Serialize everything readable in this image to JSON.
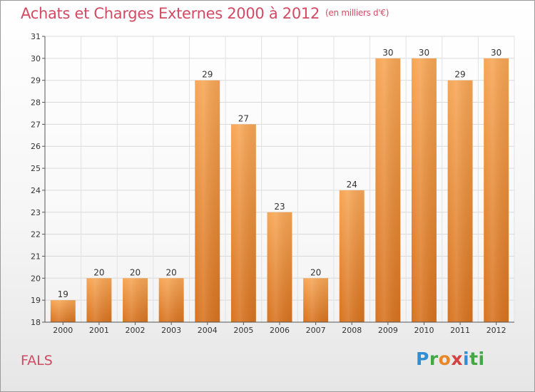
{
  "header": {
    "title": "Achats et Charges Externes 2000 à 2012",
    "unit": "(en milliers d'€)"
  },
  "footer": {
    "commune": "FALS",
    "logo_letters": [
      "P",
      "r",
      "o",
      "x",
      "i",
      "ti"
    ]
  },
  "colors": {
    "title": "#d24a63",
    "bar_top": "#f7a655",
    "bar_bottom": "#d8731f"
  },
  "chart_data": {
    "type": "bar",
    "categories": [
      "2000",
      "2001",
      "2002",
      "2003",
      "2004",
      "2005",
      "2006",
      "2007",
      "2008",
      "2009",
      "2010",
      "2011",
      "2012"
    ],
    "values": [
      19,
      20,
      20,
      20,
      29,
      27,
      23,
      20,
      24,
      30,
      30,
      29,
      30
    ],
    "title": "Achats et Charges Externes 2000 à 2012",
    "ylim": [
      18,
      31
    ],
    "yticks": [
      18,
      19,
      20,
      21,
      22,
      23,
      24,
      25,
      26,
      27,
      28,
      29,
      30,
      31
    ],
    "grid": true,
    "data_labels": true
  }
}
